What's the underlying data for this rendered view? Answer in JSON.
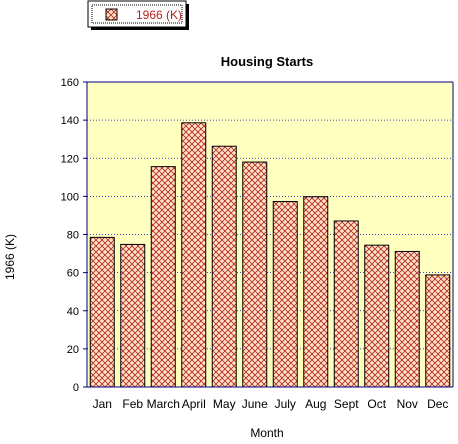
{
  "chart_data": {
    "type": "bar",
    "title": "Housing Starts",
    "xlabel": "Month",
    "ylabel": "1966 (K)",
    "categories": [
      "Jan",
      "Feb",
      "March",
      "April",
      "May",
      "June",
      "July",
      "Aug",
      "Sept",
      "Oct",
      "Nov",
      "Dec"
    ],
    "series": [
      {
        "name": "1966 (K)",
        "values": [
          78.5,
          74.8,
          115.6,
          138.6,
          126.3,
          118.0,
          97.3,
          99.8,
          87.1,
          74.4,
          71.1,
          58.8
        ]
      }
    ],
    "ylim": [
      0,
      160
    ],
    "yticks": [
      0,
      20,
      40,
      60,
      80,
      100,
      120,
      140,
      160
    ],
    "grid": true,
    "legend_position": "top-left",
    "colors": {
      "plot_background": "#ffffc0",
      "bar_fill": "#ffe4c4",
      "bar_hatch": "#b22222",
      "bar_edge": "#000000",
      "axis": "#000080",
      "gridline": "#0000cc",
      "legend_text": "#b22222"
    }
  }
}
